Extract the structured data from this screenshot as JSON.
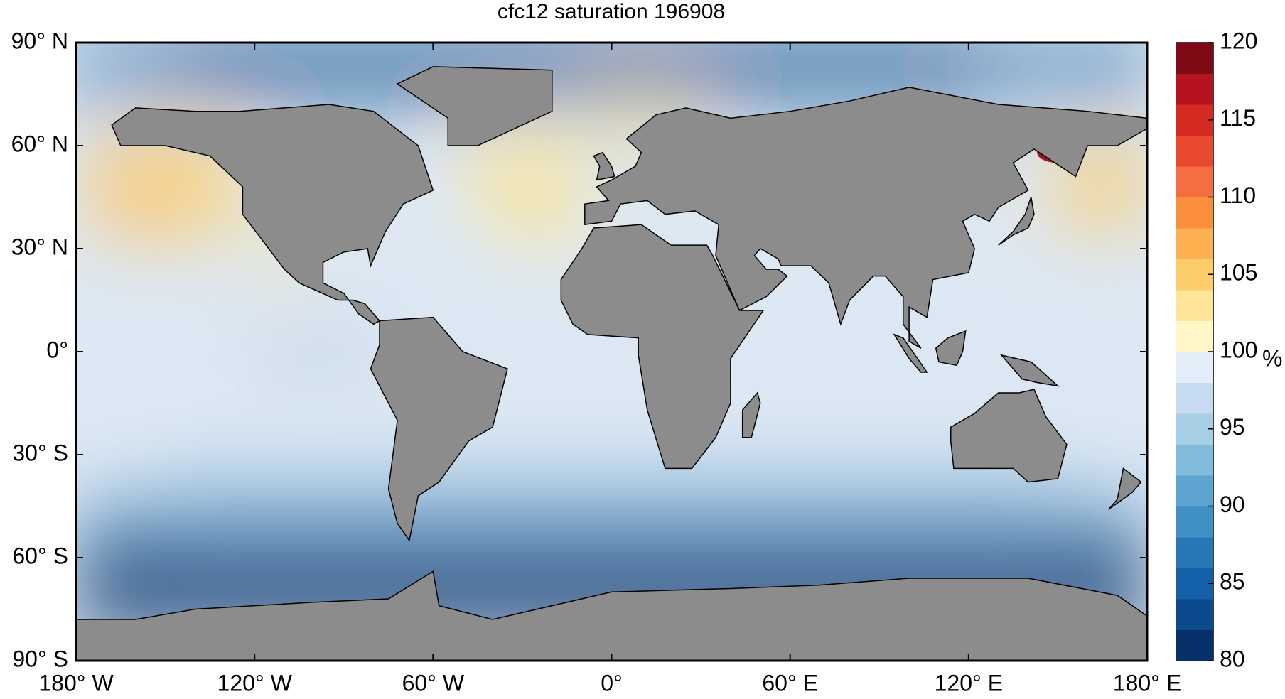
{
  "chart_data": {
    "type": "map",
    "title": "cfc12 saturation 196908",
    "xlim": [
      -180,
      180
    ],
    "ylim": [
      -90,
      90
    ],
    "xticks": [
      {
        "value": -180,
        "label": "180° W"
      },
      {
        "value": -120,
        "label": "120° W"
      },
      {
        "value": -60,
        "label": "60° W"
      },
      {
        "value": 0,
        "label": "0°"
      },
      {
        "value": 60,
        "label": "60° E"
      },
      {
        "value": 120,
        "label": "120° E"
      },
      {
        "value": 180,
        "label": "180° E"
      }
    ],
    "yticks": [
      {
        "value": 90,
        "label": "90° N"
      },
      {
        "value": 60,
        "label": "60° N"
      },
      {
        "value": 30,
        "label": "30° N"
      },
      {
        "value": 0,
        "label": "0°"
      },
      {
        "value": -30,
        "label": "30° S"
      },
      {
        "value": -60,
        "label": "60° S"
      },
      {
        "value": -90,
        "label": "90° S"
      }
    ],
    "grid": false,
    "colorbar": {
      "label": "%",
      "lim": [
        80,
        120
      ],
      "ticks": [
        80,
        85,
        90,
        95,
        100,
        105,
        110,
        115,
        120
      ],
      "colors": [
        "#08306b",
        "#0b4a8c",
        "#1561a8",
        "#2878b8",
        "#4090c5",
        "#5ea4d1",
        "#82badb",
        "#a6cee4",
        "#c6dbef",
        "#e3edf7",
        "#fff7c8",
        "#fee597",
        "#fdcc6a",
        "#fdb050",
        "#fb8e3c",
        "#f46d43",
        "#e8492f",
        "#d42a22",
        "#b5141f",
        "#7f0a16"
      ]
    }
  }
}
